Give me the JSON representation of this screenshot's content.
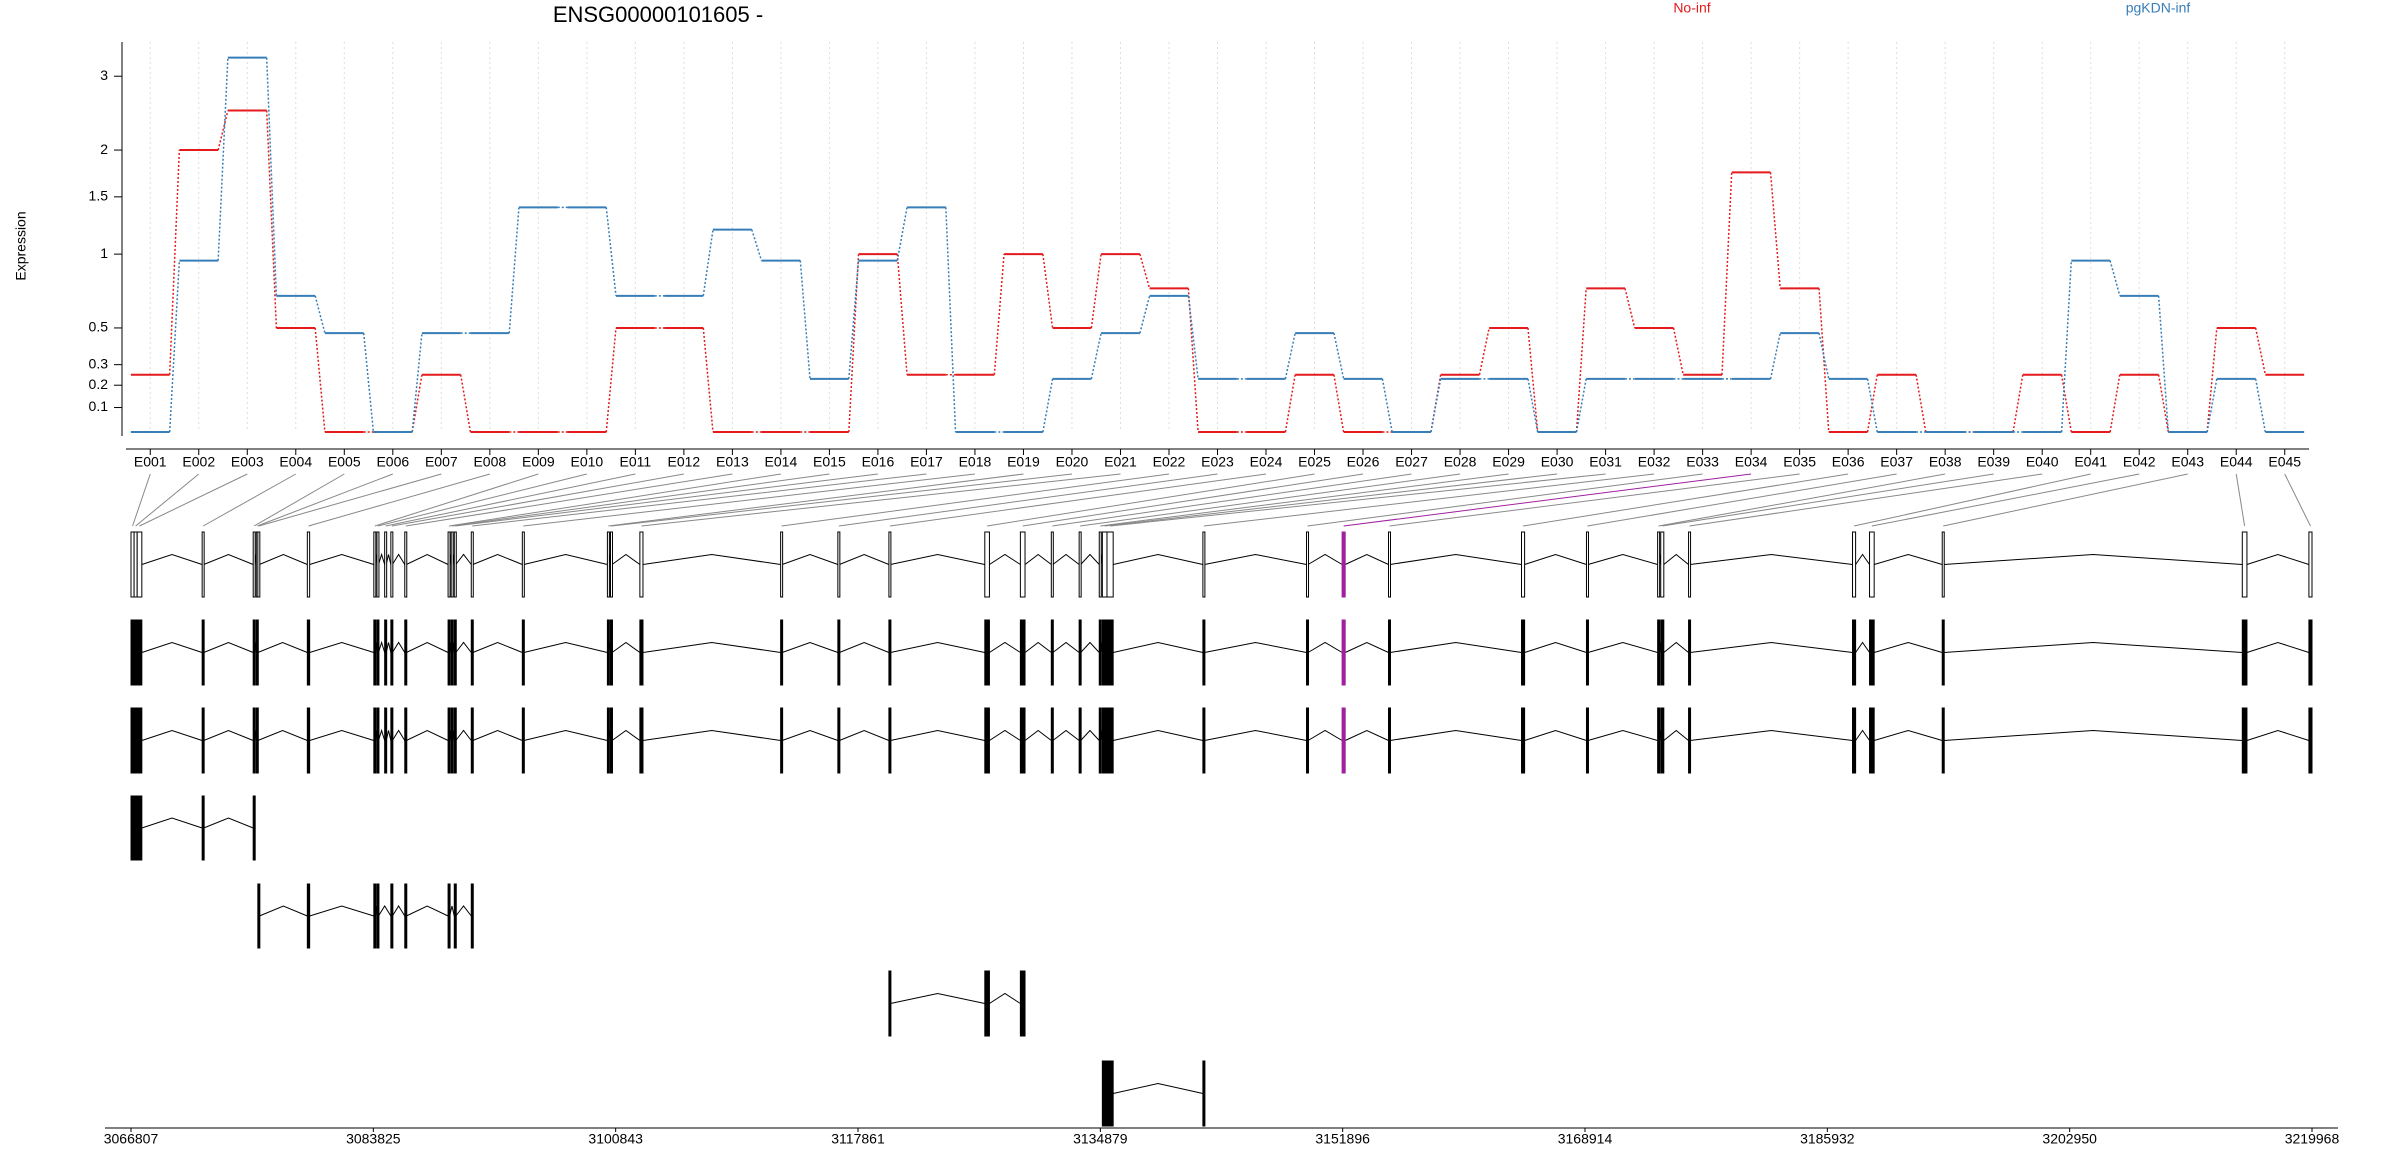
{
  "chart_data": {
    "type": "step",
    "title": "ENSG00000101605 -",
    "y_label": "Expression",
    "categories": [
      "E001",
      "E002",
      "E003",
      "E004",
      "E005",
      "E006",
      "E007",
      "E008",
      "E009",
      "E010",
      "E011",
      "E012",
      "E013",
      "E014",
      "E015",
      "E016",
      "E017",
      "E018",
      "E019",
      "E020",
      "E021",
      "E022",
      "E023",
      "E024",
      "E025",
      "E026",
      "E027",
      "E028",
      "E029",
      "E030",
      "E031",
      "E032",
      "E033",
      "E034",
      "E035",
      "E036",
      "E037",
      "E038",
      "E039",
      "E040",
      "E041",
      "E042",
      "E043",
      "E044",
      "E045"
    ],
    "series": [
      {
        "name": "No-inf",
        "color": "#e41a1c",
        "values": [
          0.25,
          2.0,
          2.5,
          0.5,
          0,
          0,
          0.25,
          0,
          0,
          0,
          0.5,
          0.5,
          0,
          0,
          0,
          1.0,
          0.25,
          0.25,
          1.0,
          0.5,
          1.0,
          0.75,
          0,
          0,
          0.25,
          0,
          0,
          0.25,
          0.5,
          0,
          0.75,
          0.5,
          0.25,
          1.75,
          0.75,
          0,
          0.25,
          0,
          0,
          0.25,
          0,
          0.25,
          0,
          0.5,
          0.25
        ]
      },
      {
        "name": "pgKDN-inf",
        "color": "#377eb8",
        "values": [
          0,
          0.95,
          3.3,
          0.7,
          0.47,
          0,
          0.47,
          0.47,
          1.4,
          1.4,
          0.7,
          0.7,
          1.2,
          0.95,
          0.23,
          0.95,
          1.4,
          0,
          0,
          0.23,
          0.47,
          0.7,
          0.23,
          0.23,
          0.47,
          0.23,
          0,
          0.23,
          0.23,
          0,
          0.23,
          0.23,
          0.23,
          0.23,
          0.47,
          0.23,
          0,
          0,
          0,
          0,
          0.95,
          0.7,
          0,
          0.23,
          0
        ]
      }
    ],
    "ylim": [
      0,
      3.5
    ],
    "yticks": [
      0.1,
      0.2,
      0.3,
      0.5,
      1,
      1.5,
      2,
      3
    ],
    "y_scale": "log1p",
    "grid": true,
    "gene_model": {
      "xlim": [
        3066807,
        3219968
      ],
      "xticks": [
        3066807,
        3083825,
        3100843,
        3117861,
        3134879,
        3151896,
        3168914,
        3185932,
        3202950,
        3219968
      ],
      "highlight_exon": 33,
      "highlight_color": "#a020a0",
      "exons": [
        [
          3066807,
          3067024
        ],
        [
          3067024,
          3067241
        ],
        [
          3067241,
          3067567
        ],
        [
          3071804,
          3071913
        ],
        [
          3075388,
          3075497
        ],
        [
          3075605,
          3075714
        ],
        [
          3075714,
          3075823
        ],
        [
          3079190,
          3079353
        ],
        [
          3083860,
          3083969
        ],
        [
          3084078,
          3084187
        ],
        [
          3084621,
          3084730
        ],
        [
          3085055,
          3085164
        ],
        [
          3086033,
          3086142
        ],
        [
          3089074,
          3089183
        ],
        [
          3089291,
          3089400
        ],
        [
          3089509,
          3089618
        ],
        [
          3090703,
          3090812
        ],
        [
          3094288,
          3094397
        ],
        [
          3100262,
          3100371
        ],
        [
          3100479,
          3100588
        ],
        [
          3102543,
          3102760
        ],
        [
          3112427,
          3112536
        ],
        [
          3116446,
          3116555
        ],
        [
          3120031,
          3120140
        ],
        [
          3126765,
          3127091
        ],
        [
          3129264,
          3129590
        ],
        [
          3131436,
          3131545
        ],
        [
          3133391,
          3133500
        ],
        [
          3134803,
          3134912
        ],
        [
          3135020,
          3135346
        ],
        [
          3135346,
          3135780
        ],
        [
          3142081,
          3142190
        ],
        [
          3149358,
          3149467
        ],
        [
          3151857,
          3152074
        ],
        [
          3155115,
          3155224
        ],
        [
          3164456,
          3164673
        ],
        [
          3169018,
          3169127
        ],
        [
          3174015,
          3174124
        ],
        [
          3174232,
          3174449
        ],
        [
          3176187,
          3176296
        ],
        [
          3187701,
          3187918
        ],
        [
          3188896,
          3189222
        ],
        [
          3194001,
          3194110
        ],
        [
          3215073,
          3215399
        ],
        [
          3219751,
          3219968
        ]
      ],
      "transcripts": [
        [
          0,
          1,
          2,
          3,
          4,
          5,
          7,
          8,
          9,
          10,
          11,
          12,
          13,
          14,
          15,
          16,
          17,
          18,
          19,
          20,
          21,
          22,
          23,
          24,
          25,
          26,
          27,
          28,
          29,
          30,
          31,
          32,
          33,
          34,
          35,
          36,
          37,
          38,
          39,
          40,
          41,
          42,
          43,
          44
        ],
        [
          0,
          1,
          2,
          3,
          4,
          5,
          7,
          8,
          9,
          10,
          11,
          12,
          13,
          14,
          15,
          16,
          17,
          18,
          19,
          20,
          21,
          22,
          23,
          24,
          25,
          26,
          27,
          28,
          29,
          30,
          31,
          32,
          33,
          34,
          35,
          36,
          37,
          38,
          39,
          40,
          41,
          42,
          43,
          44
        ],
        [
          0,
          1,
          2,
          3,
          4
        ],
        [
          6,
          7,
          8,
          9,
          11,
          12,
          13,
          15,
          16
        ],
        [
          23,
          24,
          25
        ],
        [
          29,
          30,
          31
        ]
      ]
    }
  }
}
